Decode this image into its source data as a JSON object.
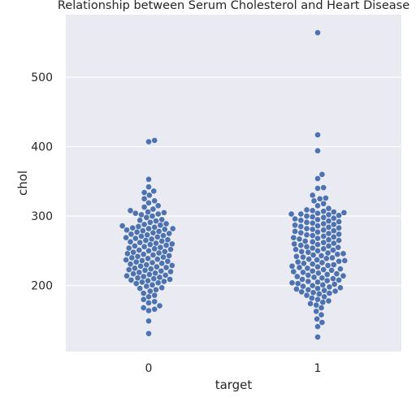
{
  "chart_data": {
    "type": "scatter",
    "subtype": "swarm",
    "title": "Relationship between Serum Cholesterol and Heart Disease",
    "xlabel": "target",
    "ylabel": "chol",
    "categories": [
      "0",
      "1"
    ],
    "yticks": [
      200,
      300,
      400,
      500
    ],
    "ylim": [
      105,
      590
    ],
    "grid": true,
    "colors": {
      "point": "#4c72b0",
      "background": "#eaeaf2",
      "grid": "#ffffff",
      "text": "#262626"
    },
    "series": [
      {
        "category": "0",
        "values": [
          409,
          407,
          353,
          342,
          336,
          334,
          330,
          325,
          322,
          319,
          315,
          313,
          310,
          308,
          306,
          305,
          304,
          303,
          302,
          300,
          298,
          295,
          294,
          293,
          291,
          289,
          288,
          287,
          286,
          285,
          284,
          283,
          282,
          282,
          281,
          280,
          279,
          278,
          277,
          276,
          275,
          274,
          273,
          272,
          271,
          270,
          269,
          268,
          267,
          266,
          265,
          264,
          263,
          262,
          261,
          260,
          259,
          258,
          257,
          256,
          255,
          254,
          253,
          252,
          251,
          250,
          249,
          248,
          247,
          246,
          245,
          244,
          243,
          242,
          241,
          240,
          239,
          238,
          237,
          236,
          235,
          234,
          233,
          232,
          231,
          230,
          229,
          228,
          227,
          226,
          225,
          224,
          223,
          222,
          221,
          220,
          219,
          218,
          217,
          216,
          215,
          214,
          213,
          212,
          211,
          210,
          209,
          208,
          207,
          206,
          205,
          204,
          203,
          201,
          199,
          197,
          196,
          194,
          192,
          189,
          186,
          184,
          180,
          177,
          175,
          171,
          168,
          166,
          164,
          149,
          131
        ]
      },
      {
        "category": "1",
        "values": [
          564,
          417,
          394,
          360,
          354,
          341,
          340,
          330,
          326,
          325,
          322,
          318,
          315,
          311,
          309,
          308,
          307,
          306,
          305,
          304,
          303,
          303,
          302,
          301,
          300,
          299,
          298,
          297,
          296,
          295,
          294,
          293,
          292,
          291,
          290,
          289,
          288,
          287,
          286,
          285,
          284,
          283,
          282,
          281,
          280,
          279,
          278,
          277,
          276,
          275,
          274,
          273,
          272,
          271,
          270,
          269,
          268,
          267,
          266,
          265,
          264,
          263,
          262,
          261,
          260,
          259,
          258,
          257,
          256,
          255,
          254,
          253,
          252,
          251,
          250,
          249,
          248,
          247,
          246,
          245,
          244,
          243,
          242,
          241,
          240,
          239,
          238,
          237,
          236,
          235,
          234,
          233,
          232,
          231,
          230,
          229,
          228,
          227,
          226,
          225,
          224,
          223,
          222,
          221,
          220,
          219,
          218,
          217,
          216,
          215,
          214,
          213,
          212,
          211,
          210,
          209,
          208,
          207,
          206,
          205,
          204,
          203,
          202,
          201,
          200,
          199,
          198,
          197,
          196,
          195,
          194,
          193,
          192,
          191,
          190,
          189,
          188,
          186,
          184,
          182,
          180,
          178,
          176,
          174,
          172,
          168,
          163,
          158,
          152,
          147,
          141,
          126
        ]
      }
    ]
  }
}
